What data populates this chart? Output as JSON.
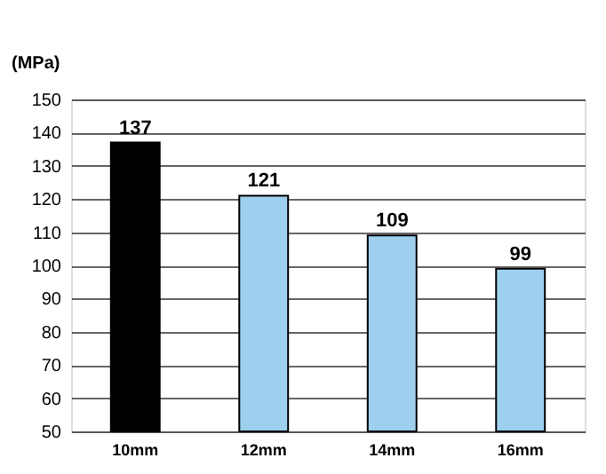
{
  "chart_data": {
    "type": "bar",
    "ylabel": "(MPa)",
    "categories": [
      "10mm",
      "12mm",
      "14mm",
      "16mm"
    ],
    "values": [
      137,
      121,
      109,
      99
    ],
    "colors": [
      "#000000",
      "#9fcfee",
      "#9fcfee",
      "#9fcfee"
    ],
    "ylim": [
      50,
      150
    ],
    "yticks": [
      50,
      60,
      70,
      80,
      90,
      100,
      110,
      120,
      130,
      140,
      150
    ],
    "grid": "y",
    "data_labels": true
  }
}
